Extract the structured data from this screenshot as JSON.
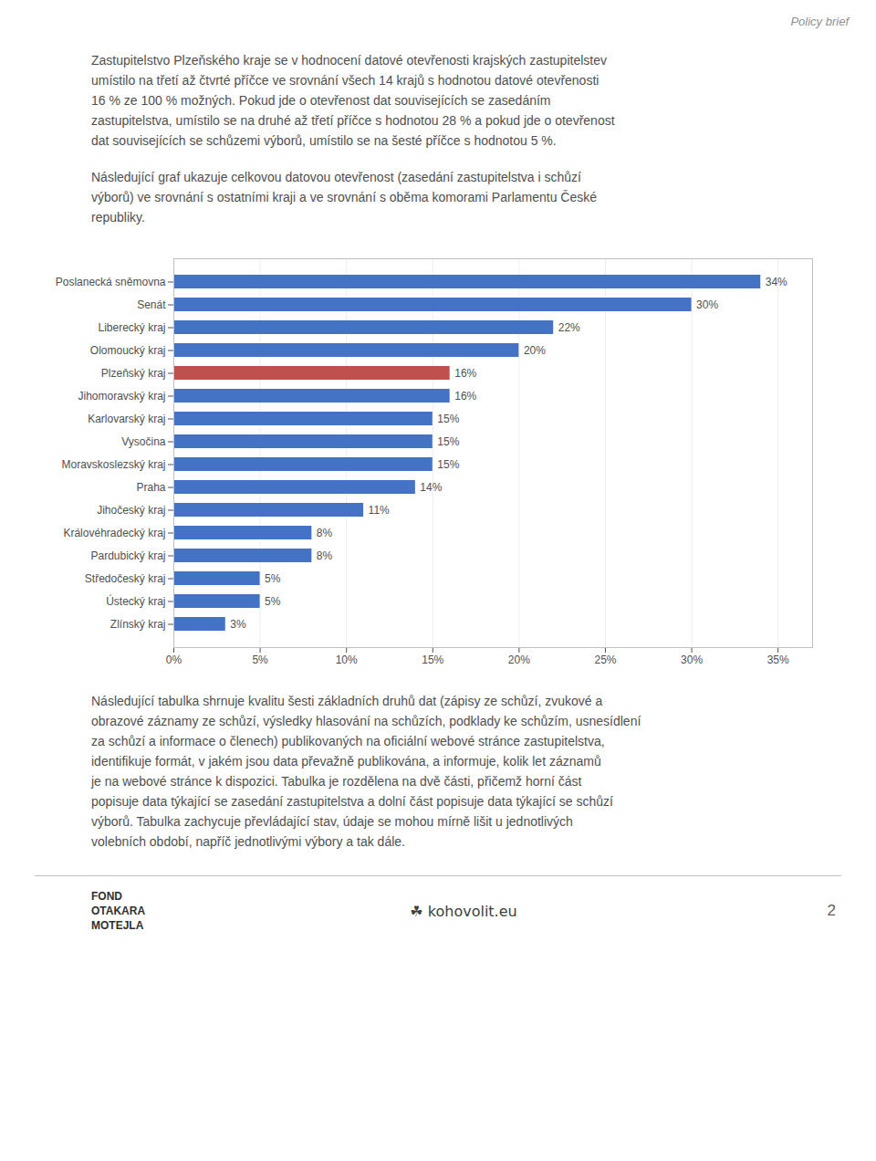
{
  "chart_data": {
    "type": "bar",
    "orientation": "horizontal",
    "categories": [
      "Poslanecká sněmovna",
      "Senát",
      "Liberecký kraj",
      "Olomoucký kraj",
      "Plzeňský kraj",
      "Jihomoravský kraj",
      "Karlovarský kraj",
      "Vysočina",
      "Moravskoslezský kraj",
      "Praha",
      "Jihočeský kraj",
      "Královéhradecký kraj",
      "Pardubický kraj",
      "Středočeský kraj",
      "Ústecký kraj",
      "Zlínský kraj"
    ],
    "values": [
      34,
      30,
      22,
      20,
      16,
      16,
      15,
      15,
      15,
      14,
      11,
      8,
      8,
      5,
      5,
      3
    ],
    "value_labels": [
      "34%",
      "30%",
      "22%",
      "20%",
      "16%",
      "16%",
      "15%",
      "15%",
      "15%",
      "14%",
      "11%",
      "8%",
      "8%",
      "5%",
      "5%",
      "3%"
    ],
    "colors": [
      "#4472C4",
      "#4472C4",
      "#4472C4",
      "#4472C4",
      "#C0504D",
      "#4472C4",
      "#4472C4",
      "#4472C4",
      "#4472C4",
      "#4472C4",
      "#4472C4",
      "#4472C4",
      "#4472C4",
      "#4472C4",
      "#4472C4",
      "#4472C4"
    ],
    "xlim": [
      0,
      37
    ],
    "xticks": [
      {
        "value": 0,
        "label": "0%"
      },
      {
        "value": 5,
        "label": "5%"
      },
      {
        "value": 10,
        "label": "10%"
      },
      {
        "value": 15,
        "label": "15%"
      },
      {
        "value": 20,
        "label": "20%"
      },
      {
        "value": 25,
        "label": "25%"
      },
      {
        "value": 30,
        "label": "30%"
      },
      {
        "value": 35,
        "label": "35%"
      }
    ],
    "grid": true,
    "data_labels": true
  },
  "page": {
    "header": "Policy brief",
    "paragraphs_before": [
      [
        "Zastupitelstvo Plzeňského kraje se v hodnocení datové otevřenosti krajských zastupitelstev",
        "umístilo na třetí až čtvrté příčce ve srovnání všech 14 krajů s hodnotou datové otevřenosti",
        "16 % ze 100 % možných. Pokud jde o otevřenost dat souvisejících se zasedáním",
        "zastupitelstva, umístilo se na druhé až třetí příčce s hodnotou 28 % a pokud jde o otevřenost",
        "dat souvisejících se schůzemi výborů, umístilo se na šesté příčce s hodnotou 5 %."
      ],
      [
        "Následující graf ukazuje celkovou datovou otevřenost (zasedání zastupitelstva i schůzí",
        "výborů) ve srovnání s ostatními kraji a ve srovnání s oběma komorami Parlamentu České",
        "republiky."
      ]
    ],
    "paragraphs_after": [
      [
        "Následující tabulka shrnuje kvalitu šesti základních druhů dat (zápisy ze schůzí, zvukové a",
        "obrazové záznamy ze schůzí, výsledky hlasování na schůzích, podklady ke schůzím, usnesídlení",
        "za schůzí a informace o členech) publikovaných na oficiální webové stránce zastupitelstva,",
        "identifikuje formát, v jakém jsou data převažně publikována, a informuje, kolik let záznamů",
        "je na webové stránce k dispozici. Tabulka je rozdělena na dvě části, přičemž horní část",
        "popisuje data týkající se zasedání zastupitelstva a dolní část popisuje data týkající se schůzí",
        "výborů. Tabulka zachycuje převládající stav, údaje se mohou mírně lišit u jednotlivých",
        "volebních období, napříč jednotlivými výbory a tak dále."
      ]
    ],
    "footer_left": "FOND\nOTAKARA\nMOTEJLA",
    "footer_center": "☘ kohovolit.eu",
    "footer_page": "2"
  }
}
